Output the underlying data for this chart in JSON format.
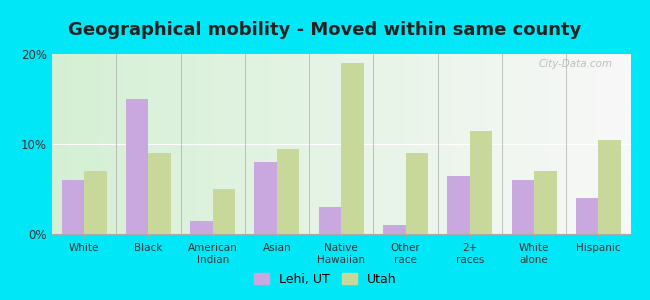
{
  "title": "Geographical mobility - Moved within same county",
  "categories": [
    "White",
    "Black",
    "American\nIndian",
    "Asian",
    "Native\nHawaiian",
    "Other\nrace",
    "2+\nraces",
    "White\nalone",
    "Hispanic"
  ],
  "lehi_values": [
    6.0,
    15.0,
    1.5,
    8.0,
    3.0,
    1.0,
    6.5,
    6.0,
    4.0
  ],
  "utah_values": [
    7.0,
    9.0,
    5.0,
    9.5,
    19.0,
    9.0,
    11.5,
    7.0,
    10.5
  ],
  "lehi_color": "#c9a8e0",
  "utah_color": "#c8d89a",
  "ylim": [
    0,
    20
  ],
  "yticks": [
    0,
    10,
    20
  ],
  "ytick_labels": [
    "0%",
    "10%",
    "20%"
  ],
  "bar_width": 0.35,
  "background_outer": "#00e8f8",
  "legend_lehi": "Lehi, UT",
  "legend_utah": "Utah",
  "title_fontsize": 13,
  "watermark": "City-Data.com"
}
